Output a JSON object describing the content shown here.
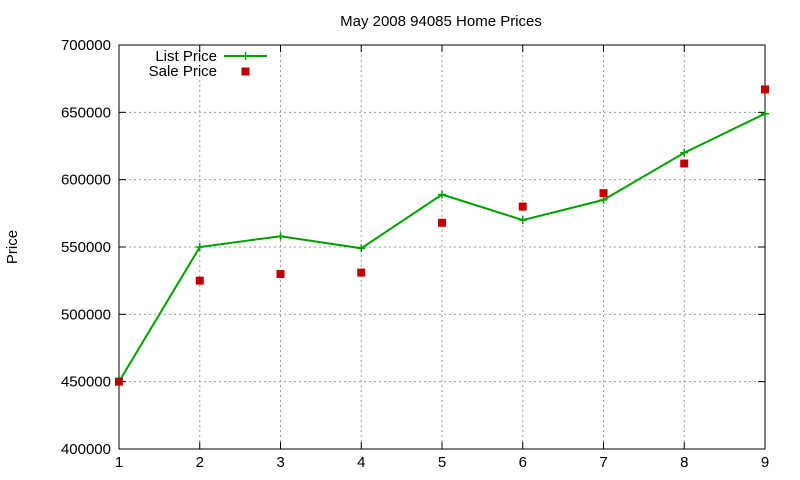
{
  "chart_data": {
    "type": "line",
    "title": "May 2008 94085 Home Prices",
    "xlabel": "",
    "ylabel": "Price",
    "xlim": [
      1,
      9
    ],
    "ylim": [
      400000,
      700000
    ],
    "x_ticks": [
      1,
      2,
      3,
      4,
      5,
      6,
      7,
      8,
      9
    ],
    "y_ticks": [
      400000,
      450000,
      500000,
      550000,
      600000,
      650000,
      700000
    ],
    "grid": true,
    "legend_position": "top-left",
    "x": [
      1,
      2,
      3,
      4,
      5,
      6,
      7,
      8,
      9
    ],
    "series": [
      {
        "name": "List Price",
        "style": "line-with-plus-markers",
        "color": "#00a000",
        "values": [
          450000,
          550000,
          558000,
          549000,
          589000,
          570000,
          585000,
          620000,
          649000
        ]
      },
      {
        "name": "Sale Price",
        "style": "square-markers",
        "color": "#c00000",
        "values": [
          450000,
          525000,
          530000,
          531000,
          568000,
          580000,
          590000,
          612000,
          667000
        ]
      }
    ]
  }
}
